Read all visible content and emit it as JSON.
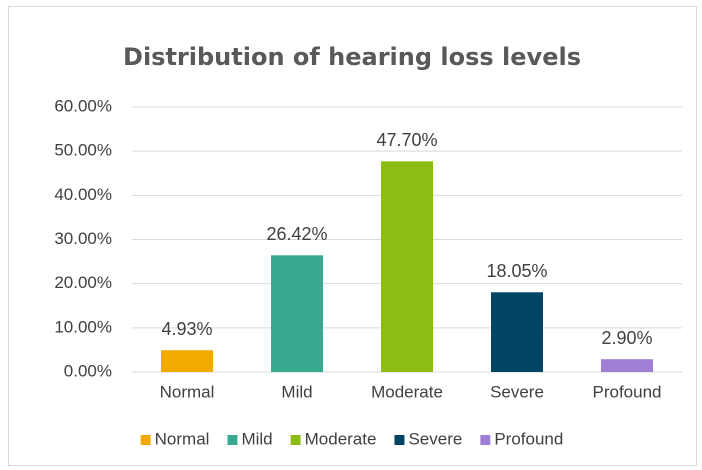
{
  "chart_data": {
    "type": "bar",
    "title": "Distribution of hearing loss levels",
    "categories": [
      "Normal",
      "Mild",
      "Moderate",
      "Severe",
      "Profound"
    ],
    "values": [
      4.93,
      26.42,
      47.7,
      18.05,
      2.9
    ],
    "value_labels": [
      "4.93%",
      "26.42%",
      "47.70%",
      "18.05%",
      "2.90%"
    ],
    "colors": [
      "#f2a900",
      "#36a98f",
      "#8cbd14",
      "#004466",
      "#a07fd6"
    ],
    "ylim": [
      0,
      60
    ],
    "yticks": [
      {
        "value": 0,
        "label": "0.00%"
      },
      {
        "value": 10,
        "label": "10.00%"
      },
      {
        "value": 20,
        "label": "20.00%"
      },
      {
        "value": 30,
        "label": "30.00%"
      },
      {
        "value": 40,
        "label": "40.00%"
      },
      {
        "value": 50,
        "label": "50.00%"
      },
      {
        "value": 60,
        "label": "60.00%"
      }
    ],
    "grid": true,
    "legend": "bottom"
  }
}
